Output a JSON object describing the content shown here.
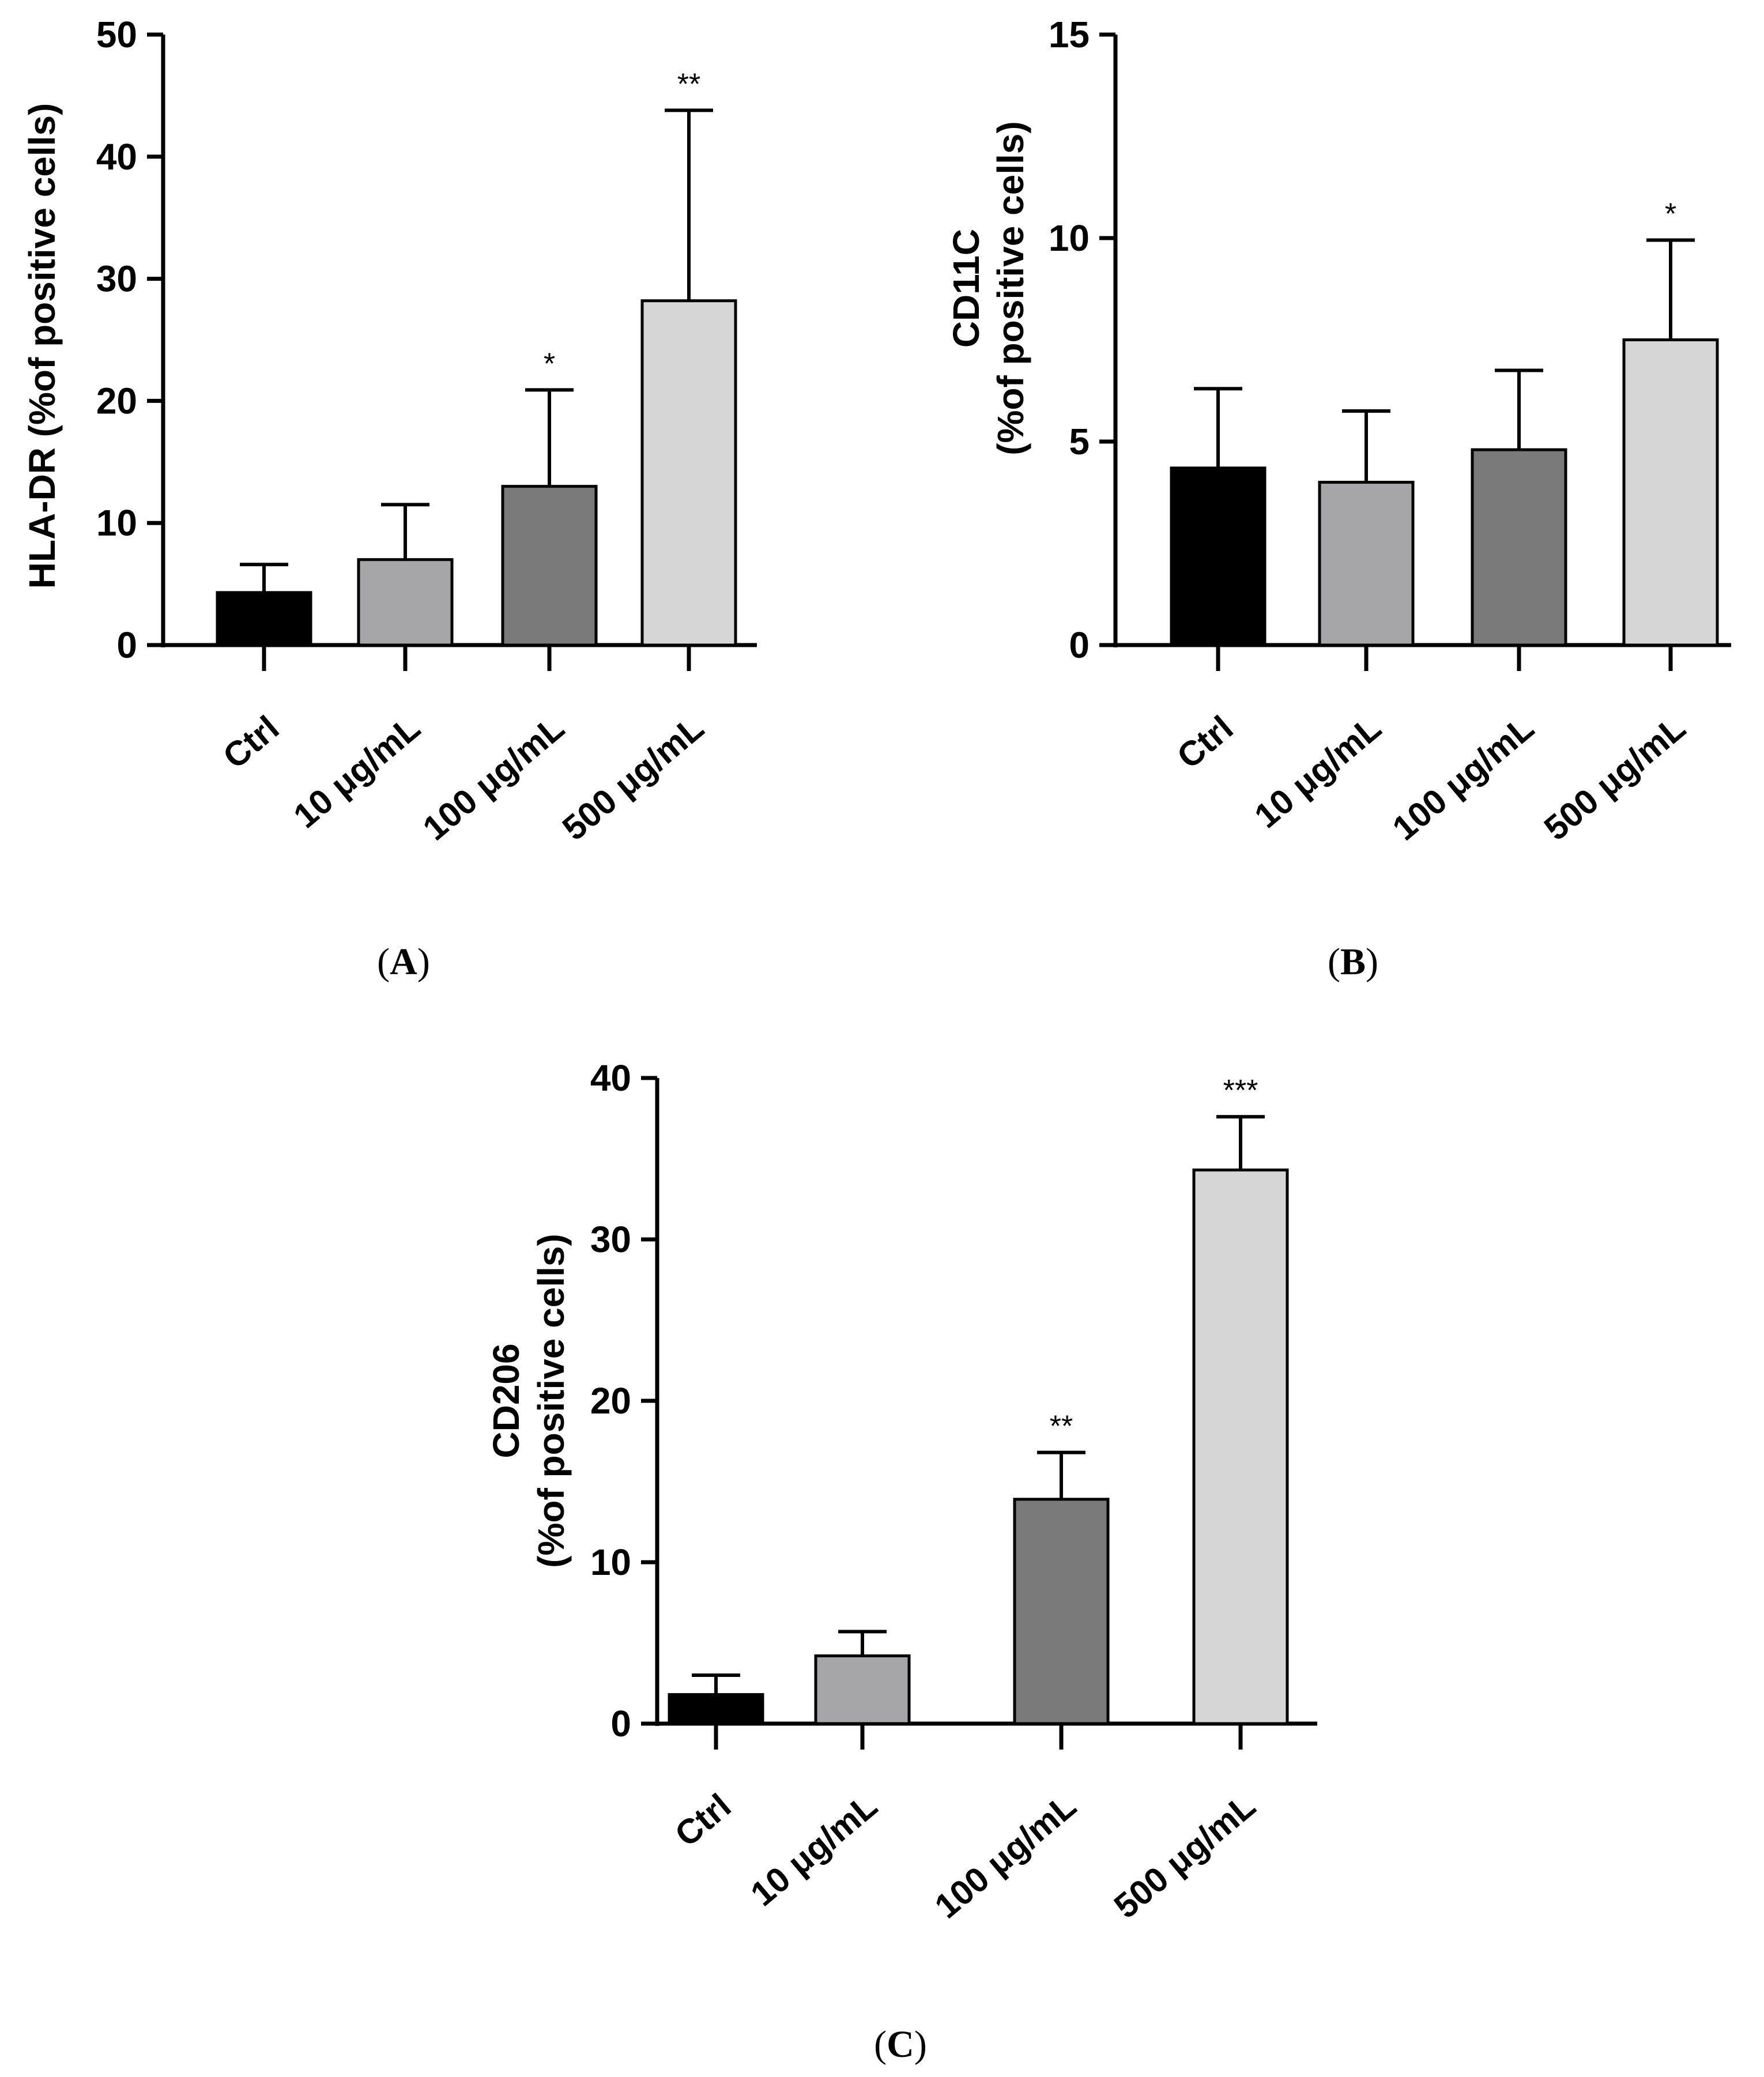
{
  "chart_data": [
    {
      "type": "bar",
      "panel": "A",
      "panel_label": {
        "open": "(",
        "letter": "A",
        "close": ")"
      },
      "ylabel": [
        "HLA-DR (%of positive cells)"
      ],
      "xlabel": "",
      "ylim": [
        0,
        50
      ],
      "yticks": [
        0,
        10,
        20,
        30,
        40,
        50
      ],
      "categories": [
        "Ctrl",
        "10 μg/mL",
        "100 μg/mL",
        "500 μg/mL"
      ],
      "values": [
        4.3,
        7.0,
        13.0,
        28.2
      ],
      "errors": [
        2.3,
        4.5,
        7.9,
        15.6
      ],
      "significance": [
        "",
        "",
        "*",
        "**"
      ],
      "colors": [
        "#000000",
        "#a6a6a8",
        "#7a7a7a",
        "#d6d6d6"
      ]
    },
    {
      "type": "bar",
      "panel": "B",
      "panel_label": {
        "open": "(",
        "letter": "B",
        "close": ")"
      },
      "ylabel": [
        "CD11C",
        "(%of positive cells)"
      ],
      "xlabel": "",
      "ylim": [
        0,
        15
      ],
      "yticks": [
        0,
        5,
        10,
        15
      ],
      "categories": [
        "Ctrl",
        "10 μg/mL",
        "100 μg/mL",
        "500 μg/mL"
      ],
      "values": [
        4.35,
        4.0,
        4.8,
        7.5
      ],
      "errors": [
        1.95,
        1.75,
        1.95,
        2.45
      ],
      "significance": [
        "",
        "",
        "",
        "*"
      ],
      "colors": [
        "#000000",
        "#a6a6a8",
        "#7a7a7a",
        "#d6d6d6"
      ]
    },
    {
      "type": "bar",
      "panel": "C",
      "panel_label": {
        "open": "(",
        "letter": "C",
        "close": ")"
      },
      "ylabel": [
        "CD206",
        "(%of positive cells)"
      ],
      "xlabel": "",
      "ylim": [
        0,
        40
      ],
      "yticks": [
        0,
        10,
        20,
        30,
        40
      ],
      "categories": [
        "Ctrl",
        "10 μg/mL",
        "100 μg/mL",
        "500 μg/mL"
      ],
      "values": [
        1.8,
        4.2,
        13.9,
        34.3
      ],
      "errors": [
        1.2,
        1.5,
        2.9,
        3.3
      ],
      "significance": [
        "",
        "",
        "**",
        "***"
      ],
      "colors": [
        "#000000",
        "#a6a6a8",
        "#7a7a7a",
        "#d6d6d6"
      ]
    }
  ]
}
